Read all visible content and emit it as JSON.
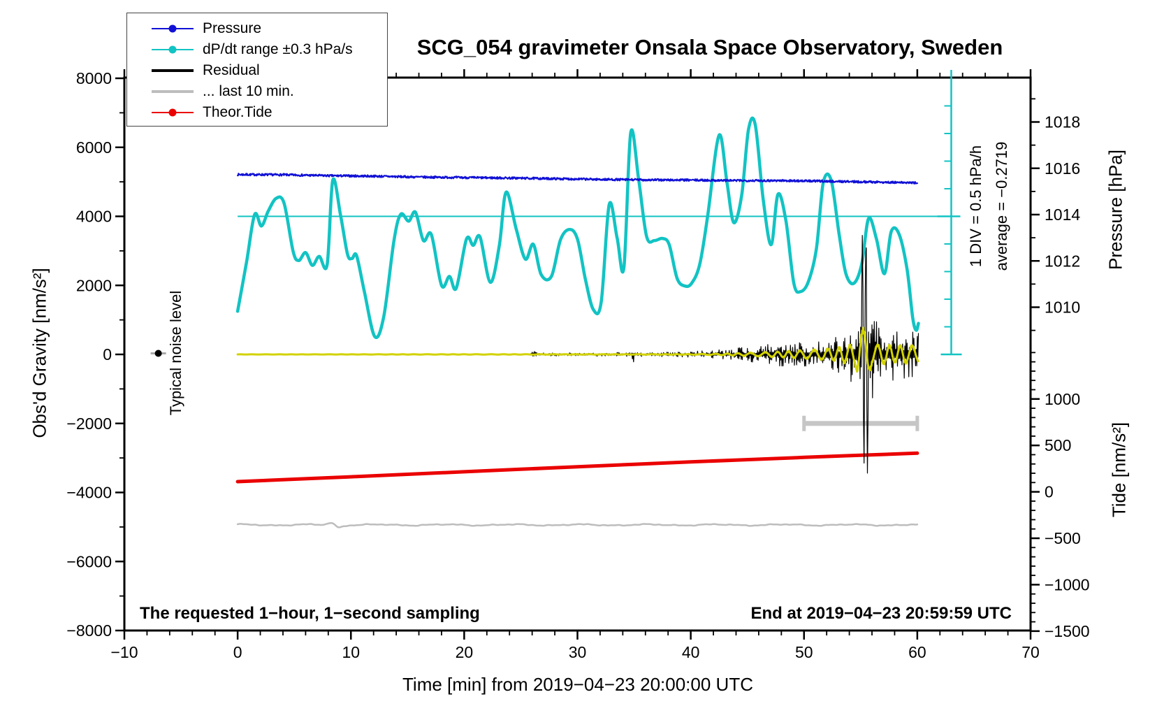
{
  "title": "SCG_054 gravimeter Onsala Space Observatory, Sweden",
  "legend": {
    "position": "top-left",
    "items": [
      {
        "label": "Pressure",
        "color": "#1111d6",
        "thickness": 2.5,
        "marker": true
      },
      {
        "label": "dP/dt range ±0.3 hPa/s",
        "color": "#12c3c3",
        "thickness": 2.5,
        "marker": true
      },
      {
        "label": "Residual",
        "color": "#000000",
        "thickness": 4,
        "marker": false
      },
      {
        "label": "... last 10 min.",
        "color": "#bdbdbd",
        "thickness": 4,
        "marker": false
      },
      {
        "label": "Theor.Tide",
        "color": "#ea0000",
        "thickness": 2.5,
        "marker": true
      }
    ]
  },
  "annotations": {
    "bottom_left": "The requested 1−hour, 1−second sampling",
    "bottom_right": "End at 2019−04−23 20:59:59 UTC",
    "noise_label": "Typical noise level"
  },
  "chart_data": {
    "type": "line",
    "title": "SCG_054 gravimeter Onsala Space Observatory, Sweden",
    "grid": false,
    "x_axis": {
      "label": "Time [min] from 2019−04−23 20:00:00 UTC",
      "range": [
        -10,
        70
      ],
      "major_ticks": [
        -10,
        0,
        10,
        20,
        30,
        40,
        50,
        60,
        70
      ],
      "minor_step": 2
    },
    "gravity_axis": {
      "label": "Obs'd Gravity [nm/s²]",
      "range": [
        -8000,
        8000
      ],
      "major_ticks": [
        -8000,
        -6000,
        -4000,
        -2000,
        0,
        2000,
        4000,
        6000,
        8000
      ],
      "minor_step": 1000
    },
    "pressure_axis": {
      "label": "Pressure [hPa]",
      "major_ticks": [
        1010,
        1012,
        1014,
        1016,
        1018
      ],
      "minor_ticks": [
        1009,
        1011,
        1013,
        1015,
        1017,
        1019
      ]
    },
    "tide_axis": {
      "label": "Tide [nm/s²]",
      "major_ticks": [
        -1500,
        -1000,
        -500,
        0,
        500,
        1000
      ],
      "minor_step": 100,
      "minor_range": [
        -1500,
        1500
      ]
    },
    "ruler": {
      "label": "1 DIV = 0.5 hPa/h",
      "average_label": "average = −0.2719",
      "t": 63,
      "center_gravity": 4000,
      "divisions_visible": 10
    },
    "reference_line": {
      "axis": "gravity",
      "value": 4000,
      "t_start": 0,
      "t_end": 63,
      "color": "#12c3c3"
    },
    "range_bar": {
      "t_start": 50,
      "t_end": 60,
      "gravity": -2000,
      "color": "#c6c6c6"
    },
    "noise_marker": {
      "t": -7,
      "gravity": 30
    },
    "series": [
      {
        "name": "Theor.Tide",
        "axis": "tide",
        "color": "#ea0000",
        "width": 5,
        "style": "smooth",
        "points": [
          [
            0,
            110
          ],
          [
            10,
            162
          ],
          [
            20,
            216
          ],
          [
            30,
            270
          ],
          [
            40,
            322
          ],
          [
            50,
            371
          ],
          [
            60,
            416
          ]
        ]
      },
      {
        "name": "... last 10 min.",
        "axis": "gravity",
        "color": "#bdbdbd",
        "width": 2.5,
        "style": "wiggle",
        "baseline": -4940,
        "feature": {
          "t": 8.6,
          "width": 0.5,
          "amplitude": 115
        },
        "t_end": 60
      },
      {
        "name": "dP/dt range ±0.3 hPa/s",
        "axis": "gravity",
        "color": "#12c3c3",
        "width": 4.5,
        "style": "smooth",
        "points": [
          [
            0,
            1250
          ],
          [
            0.8,
            2700
          ],
          [
            1.5,
            4050
          ],
          [
            2.1,
            3720
          ],
          [
            2.7,
            4150
          ],
          [
            3.4,
            4520
          ],
          [
            4.1,
            4380
          ],
          [
            4.9,
            2980
          ],
          [
            5.4,
            2720
          ],
          [
            6,
            2950
          ],
          [
            6.6,
            2580
          ],
          [
            7.2,
            2840
          ],
          [
            7.9,
            2600
          ],
          [
            8.4,
            5050
          ],
          [
            9.1,
            4000
          ],
          [
            9.7,
            2900
          ],
          [
            10.1,
            2780
          ],
          [
            10.5,
            2860
          ],
          [
            11.2,
            1800
          ],
          [
            12.1,
            520
          ],
          [
            12.9,
            1100
          ],
          [
            13.8,
            3300
          ],
          [
            14.4,
            4060
          ],
          [
            15.1,
            3860
          ],
          [
            15.7,
            4120
          ],
          [
            16.4,
            3300
          ],
          [
            17.1,
            3470
          ],
          [
            18,
            2000
          ],
          [
            18.7,
            2260
          ],
          [
            19.3,
            1920
          ],
          [
            20.2,
            3340
          ],
          [
            20.8,
            3160
          ],
          [
            21.4,
            3400
          ],
          [
            22.3,
            2090
          ],
          [
            23.1,
            3150
          ],
          [
            23.7,
            4700
          ],
          [
            24.6,
            3620
          ],
          [
            25.4,
            2760
          ],
          [
            26.1,
            3190
          ],
          [
            26.8,
            2310
          ],
          [
            27.7,
            2260
          ],
          [
            28.5,
            3320
          ],
          [
            29.3,
            3620
          ],
          [
            30,
            3340
          ],
          [
            30.7,
            2180
          ],
          [
            31.4,
            1300
          ],
          [
            32.1,
            1520
          ],
          [
            32.8,
            4340
          ],
          [
            33.5,
            3380
          ],
          [
            34.1,
            2520
          ],
          [
            34.7,
            6420
          ],
          [
            35.4,
            5080
          ],
          [
            36.1,
            3420
          ],
          [
            36.8,
            3300
          ],
          [
            37.5,
            3360
          ],
          [
            38.1,
            3180
          ],
          [
            38.8,
            2200
          ],
          [
            39.5,
            1980
          ],
          [
            40.1,
            2070
          ],
          [
            40.8,
            2620
          ],
          [
            41.5,
            4020
          ],
          [
            42.5,
            6350
          ],
          [
            43.2,
            4980
          ],
          [
            43.8,
            3820
          ],
          [
            44.5,
            4620
          ],
          [
            45.1,
            6520
          ],
          [
            45.7,
            6650
          ],
          [
            46.4,
            4480
          ],
          [
            47.1,
            3180
          ],
          [
            47.7,
            4640
          ],
          [
            48.4,
            3880
          ],
          [
            49.1,
            2060
          ],
          [
            49.7,
            1820
          ],
          [
            50.4,
            2120
          ],
          [
            51.1,
            3080
          ],
          [
            51.7,
            4980
          ],
          [
            52.4,
            5040
          ],
          [
            53.1,
            3480
          ],
          [
            53.7,
            2340
          ],
          [
            54.4,
            2060
          ],
          [
            55.1,
            2620
          ],
          [
            55.7,
            3940
          ],
          [
            56.4,
            3340
          ],
          [
            57.1,
            2340
          ],
          [
            57.7,
            3560
          ],
          [
            58.4,
            3480
          ],
          [
            59.1,
            2460
          ],
          [
            59.6,
            1050
          ],
          [
            59.9,
            700
          ],
          [
            60.1,
            900
          ]
        ]
      },
      {
        "name": "Pressure",
        "axis": "pressure",
        "color": "#1111d6",
        "width": 2.2,
        "style": "noisy",
        "noise_hpa": 0.045,
        "seed": 7,
        "points": [
          [
            0,
            1015.73
          ],
          [
            4,
            1015.72
          ],
          [
            8,
            1015.68
          ],
          [
            12,
            1015.66
          ],
          [
            16,
            1015.62
          ],
          [
            20,
            1015.6
          ],
          [
            24,
            1015.58
          ],
          [
            28,
            1015.55
          ],
          [
            32,
            1015.52
          ],
          [
            36,
            1015.5
          ],
          [
            40,
            1015.49
          ],
          [
            44,
            1015.47
          ],
          [
            48,
            1015.47
          ],
          [
            52,
            1015.44
          ],
          [
            56,
            1015.41
          ],
          [
            60,
            1015.37
          ]
        ]
      },
      {
        "name": "Residual",
        "axis": "gravity",
        "color": "#000000",
        "width": 1.2,
        "style": "seismic",
        "seed": 3,
        "t_end": 60.1,
        "envelope": [
          [
            0,
            5
          ],
          [
            25.8,
            5
          ],
          [
            26.2,
            140
          ],
          [
            26.7,
            40
          ],
          [
            28,
            45
          ],
          [
            31,
            50
          ],
          [
            34.6,
            60
          ],
          [
            34.9,
            260
          ],
          [
            35.3,
            60
          ],
          [
            37,
            60
          ],
          [
            39,
            70
          ],
          [
            40,
            110
          ],
          [
            41.5,
            170
          ],
          [
            42.5,
            140
          ],
          [
            44,
            200
          ],
          [
            45,
            230
          ],
          [
            46,
            260
          ],
          [
            47,
            300
          ],
          [
            48,
            420
          ],
          [
            48.6,
            300
          ],
          [
            50,
            380
          ],
          [
            51,
            420
          ],
          [
            52,
            500
          ],
          [
            53,
            620
          ],
          [
            54,
            800
          ],
          [
            54.7,
            1300
          ],
          [
            55,
            2400
          ],
          [
            55.2,
            3300
          ],
          [
            55.55,
            3300
          ],
          [
            55.9,
            1500
          ],
          [
            56.3,
            1050
          ],
          [
            57,
            850
          ],
          [
            57.6,
            750
          ],
          [
            58.3,
            820
          ],
          [
            59,
            700
          ],
          [
            59.5,
            780
          ],
          [
            60.1,
            650
          ]
        ],
        "events": [
          [
            55.15,
            3450
          ],
          [
            55.3,
            -3150
          ],
          [
            55.45,
            2950
          ],
          [
            55.6,
            -3440
          ]
        ]
      },
      {
        "name": "Residual low-pass (unlabeled yellow)",
        "axis": "gravity",
        "color": "#d2d200",
        "width": 3,
        "style": "oscillation",
        "seed": 11,
        "period_min": 1.1,
        "t_end": 60.1,
        "envelope": [
          [
            0,
            2
          ],
          [
            40,
            8
          ],
          [
            43,
            25
          ],
          [
            46,
            60
          ],
          [
            49,
            110
          ],
          [
            51,
            150
          ],
          [
            53,
            220
          ],
          [
            54.5,
            330
          ],
          [
            54.85,
            800
          ],
          [
            55.6,
            800
          ],
          [
            56,
            330
          ],
          [
            57,
            300
          ],
          [
            58,
            270
          ],
          [
            59,
            290
          ],
          [
            60.1,
            270
          ]
        ]
      }
    ]
  }
}
